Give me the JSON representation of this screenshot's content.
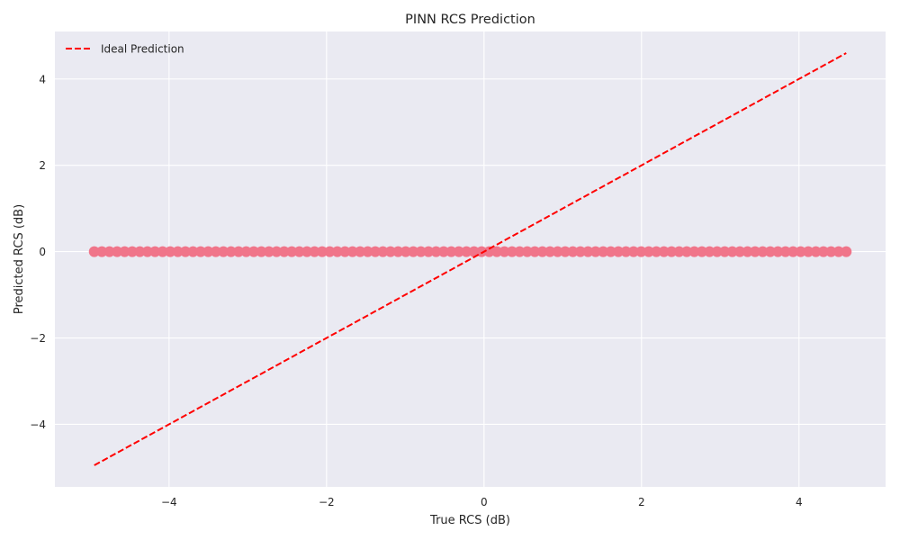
{
  "chart_data": {
    "type": "scatter",
    "title": "PINN RCS Prediction",
    "xlabel": "True RCS (dB)",
    "ylabel": "Predicted RCS (dB)",
    "xlim": [
      -5.45,
      5.1
    ],
    "ylim": [
      -5.45,
      5.1
    ],
    "xticks": [
      -4,
      -2,
      0,
      2,
      4
    ],
    "yticks": [
      -4,
      -2,
      0,
      2,
      4
    ],
    "xtick_labels": [
      "−4",
      "−2",
      "0",
      "2",
      "4"
    ],
    "ytick_labels": [
      "−4",
      "−2",
      "0",
      "2",
      "4"
    ],
    "grid": true,
    "legend_position": "top-left",
    "series": [
      {
        "type": "scatter",
        "color": "#f0758a",
        "x_range": [
          -4.95,
          4.6
        ],
        "y_value": 0,
        "point_count": 100
      },
      {
        "type": "line",
        "name": "Ideal Prediction",
        "style": "dashed",
        "color": "#ff0000",
        "x": [
          -4.95,
          4.6
        ],
        "y": [
          -4.95,
          4.6
        ]
      }
    ],
    "colors": {
      "plot_background": "#eaeaf2",
      "grid": "#ffffff",
      "text": "#262626"
    }
  }
}
